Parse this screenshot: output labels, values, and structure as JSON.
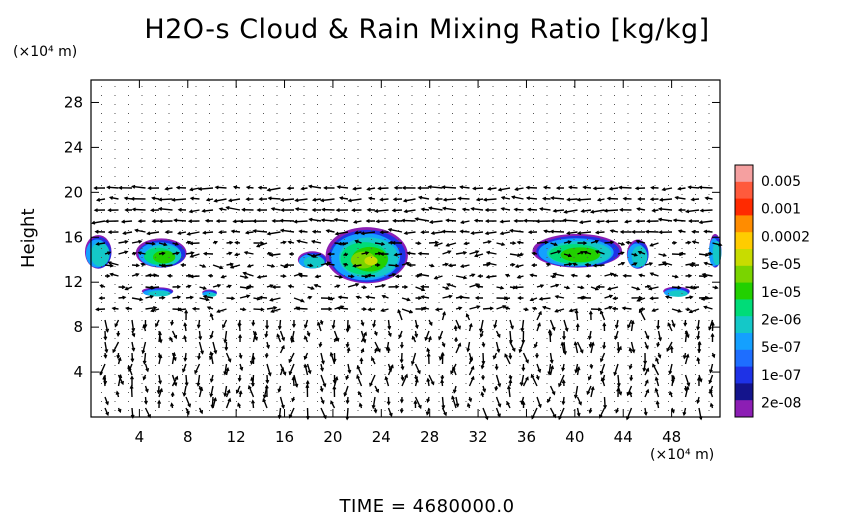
{
  "title": "H2O-s Cloud & Rain Mixing Ratio [kg/kg]",
  "y_unit": "(×10⁴ m)",
  "x_unit": "(×10⁴ m)",
  "footer": "TIME  =  4680000.0",
  "chart_data": {
    "type": "heatmap",
    "title": "H2O-s Cloud & Rain Mixing Ratio [kg/kg]",
    "xlabel": "",
    "ylabel": "Height",
    "xlim": [
      0,
      52
    ],
    "ylim": [
      0,
      30
    ],
    "x_ticks": [
      4,
      8,
      12,
      16,
      20,
      24,
      28,
      32,
      36,
      40,
      44,
      48
    ],
    "y_ticks": [
      4,
      8,
      12,
      16,
      20,
      24,
      28
    ],
    "colorbar": {
      "labels": [
        "0.005",
        "0.001",
        "0.0002",
        "5e-05",
        "1e-05",
        "2e-06",
        "5e-07",
        "1e-07",
        "2e-08"
      ],
      "colors": [
        "#f5a0a0",
        "#ff5a3c",
        "#ff2a00",
        "#ff8c00",
        "#ffcc00",
        "#c8dc00",
        "#7ad400",
        "#22d000",
        "#00dc78",
        "#14c8c8",
        "#14a0ff",
        "#1e6eff",
        "#1e32e6",
        "#14148c",
        "#8c1eb4"
      ]
    },
    "cloud_regions": [
      {
        "x_center": 0.6,
        "y_center": 14.7,
        "x_extent": 2.2,
        "y_extent": 3.0
      },
      {
        "x_center": 5.8,
        "y_center": 14.6,
        "x_extent": 4.2,
        "y_extent": 2.6
      },
      {
        "x_center": 5.5,
        "y_center": 11.2,
        "x_extent": 2.6,
        "y_extent": 0.7
      },
      {
        "x_center": 9.8,
        "y_center": 11.1,
        "x_extent": 1.2,
        "y_extent": 0.5
      },
      {
        "x_center": 18.3,
        "y_center": 14.0,
        "x_extent": 2.4,
        "y_extent": 1.5
      },
      {
        "x_center": 22.8,
        "y_center": 14.4,
        "x_extent": 6.8,
        "y_extent": 5.0
      },
      {
        "x_center": 40.2,
        "y_center": 14.8,
        "x_extent": 7.4,
        "y_extent": 3.0
      },
      {
        "x_center": 45.2,
        "y_center": 14.5,
        "x_extent": 1.8,
        "y_extent": 2.6
      },
      {
        "x_center": 48.4,
        "y_center": 11.2,
        "x_extent": 2.2,
        "y_extent": 0.8
      },
      {
        "x_center": 51.6,
        "y_center": 14.8,
        "x_extent": 1.0,
        "y_extent": 3.0
      }
    ]
  }
}
